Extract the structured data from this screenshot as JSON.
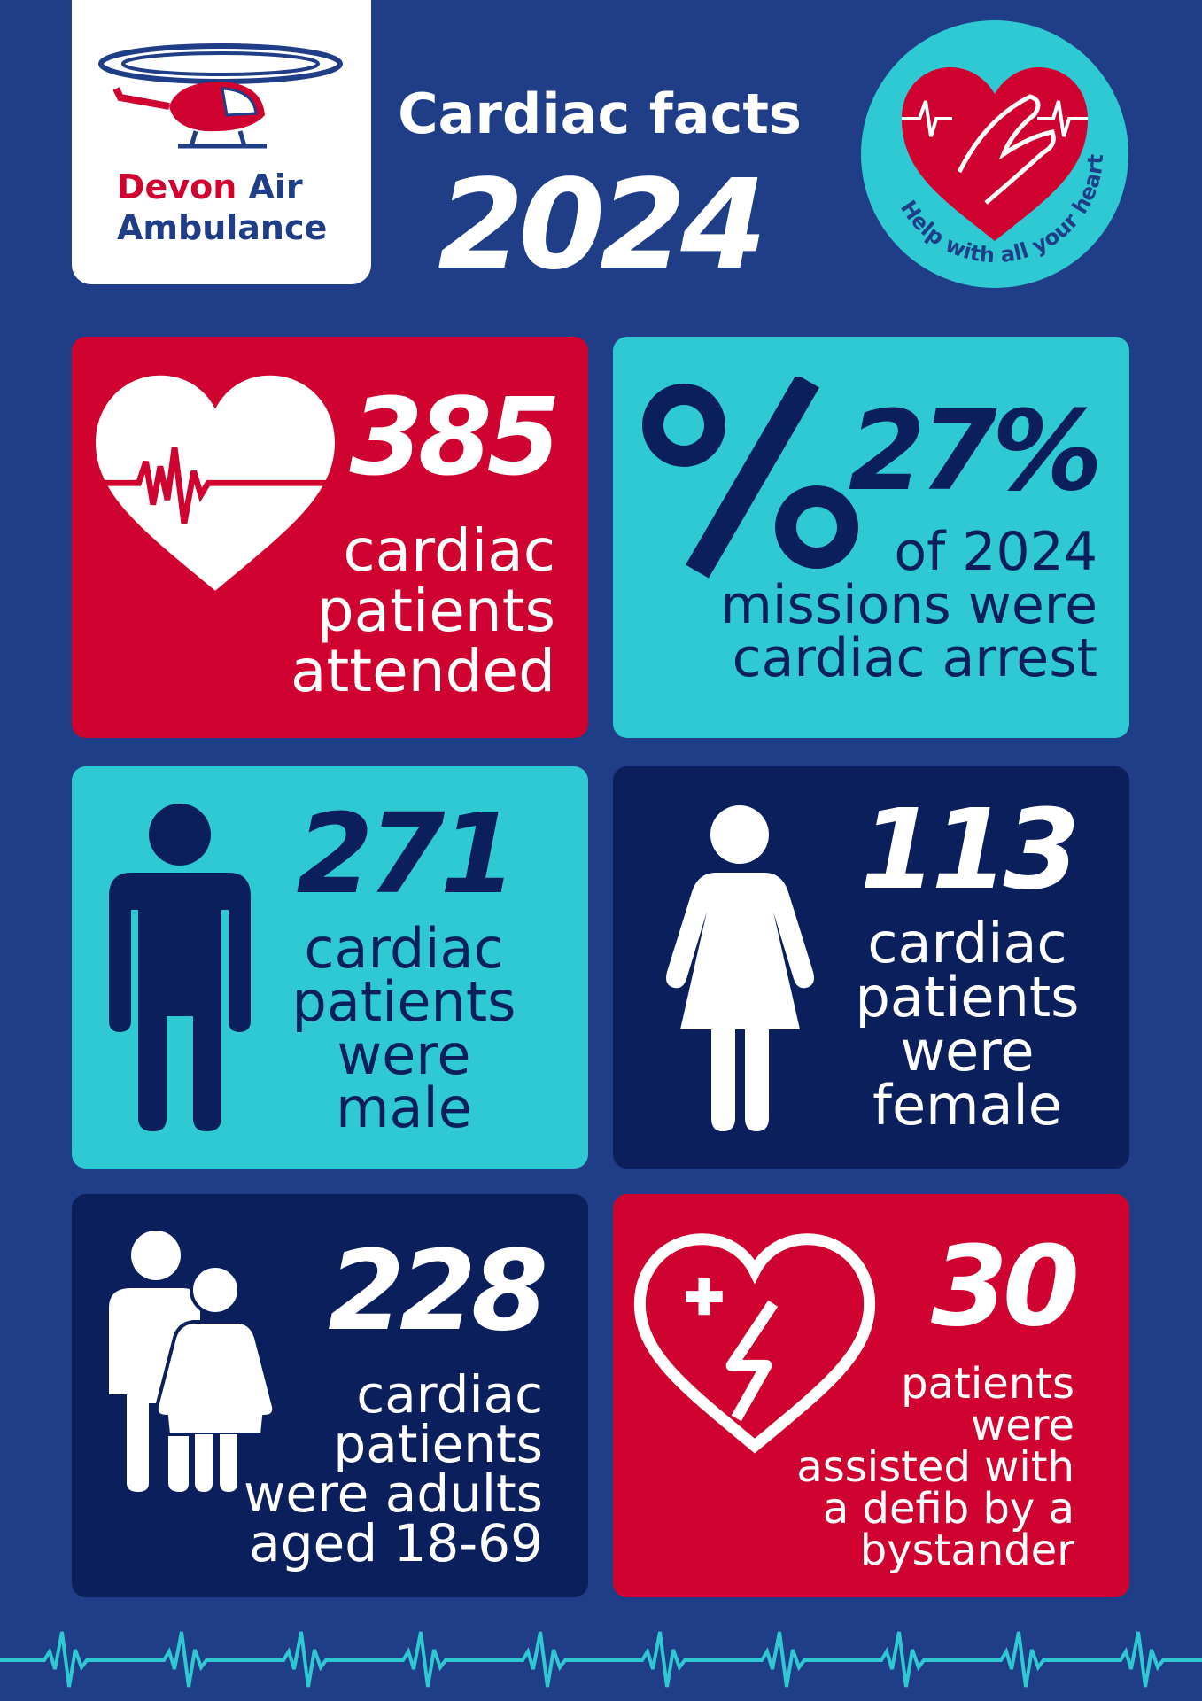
{
  "header": {
    "logo": {
      "brand_1": "Devon",
      "brand_2": "Air",
      "brand_3": "Ambulance"
    },
    "title": "Cardiac facts",
    "year": "2024",
    "badge": "Help with all your heart"
  },
  "cards": [
    {
      "number": "385",
      "lines": [
        "cardiac",
        "patients",
        "attended"
      ]
    },
    {
      "number": "27%",
      "lines": [
        "of 2024",
        "missions were",
        "cardiac arrest"
      ]
    },
    {
      "number": "271",
      "lines": [
        "cardiac",
        "patients",
        "were",
        "male"
      ]
    },
    {
      "number": "113",
      "lines": [
        "cardiac",
        "patients",
        "were",
        "female"
      ]
    },
    {
      "number": "228",
      "lines": [
        "cardiac",
        "patients",
        "were adults",
        "aged 18-69"
      ]
    },
    {
      "number": "30",
      "lines": [
        "patients",
        "were",
        "assisted with",
        "a defib by a",
        "bystander"
      ]
    }
  ]
}
